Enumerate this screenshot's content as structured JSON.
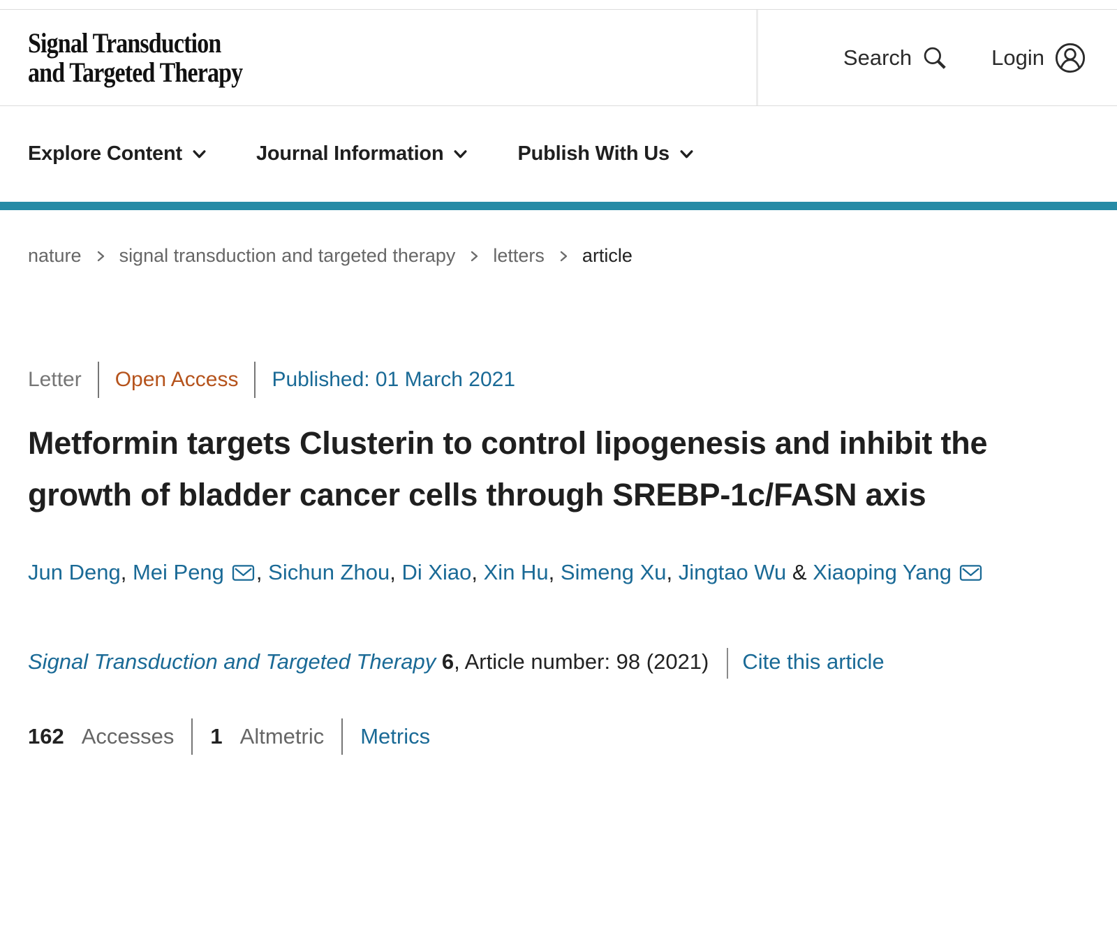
{
  "header": {
    "logo_line1": "Signal Transduction",
    "logo_line2": "and Targeted Therapy",
    "search_label": "Search",
    "login_label": "Login"
  },
  "nav": {
    "items": [
      {
        "label": "Explore Content"
      },
      {
        "label": "Journal Information"
      },
      {
        "label": "Publish With Us"
      }
    ]
  },
  "breadcrumb": {
    "items": [
      "nature",
      "signal transduction and targeted therapy",
      "letters",
      "article"
    ]
  },
  "article": {
    "type_label": "Letter",
    "access_label": "Open Access",
    "published_label": "Published: 01 March 2021",
    "title": "Metformin targets Clusterin to control lipogenesis and inhibit the growth of bladder cancer cells through SREBP-1c/FASN axis",
    "authors": [
      {
        "name": "Jun Deng",
        "email": false
      },
      {
        "name": "Mei Peng",
        "email": true
      },
      {
        "name": "Sichun Zhou",
        "email": false
      },
      {
        "name": "Di Xiao",
        "email": false
      },
      {
        "name": "Xin Hu",
        "email": false
      },
      {
        "name": "Simeng Xu",
        "email": false
      },
      {
        "name": "Jingtao Wu",
        "email": false
      },
      {
        "name": "Xiaoping Yang",
        "email": true
      }
    ],
    "author_separator": ", ",
    "author_last_separator": " & ",
    "journal_name": "Signal Transduction and Targeted Therapy",
    "volume": "6",
    "article_number_text": ", Article number: 98 (2021)",
    "cite_link": "Cite this article",
    "metrics": {
      "accesses_value": "162",
      "accesses_label": "Accesses",
      "altmetric_value": "1",
      "altmetric_label": "Altmetric",
      "metrics_link": "Metrics"
    }
  },
  "icons": {
    "search": "magnifier",
    "login": "person-in-circle",
    "nav_caret": "chevron-down",
    "breadcrumb_separator": "chevron-right",
    "author_email": "envelope"
  },
  "colors": {
    "link": "#1a6a96",
    "open_access": "#b5531c",
    "brand_bar": "#268ba6",
    "muted_text": "#666666"
  }
}
